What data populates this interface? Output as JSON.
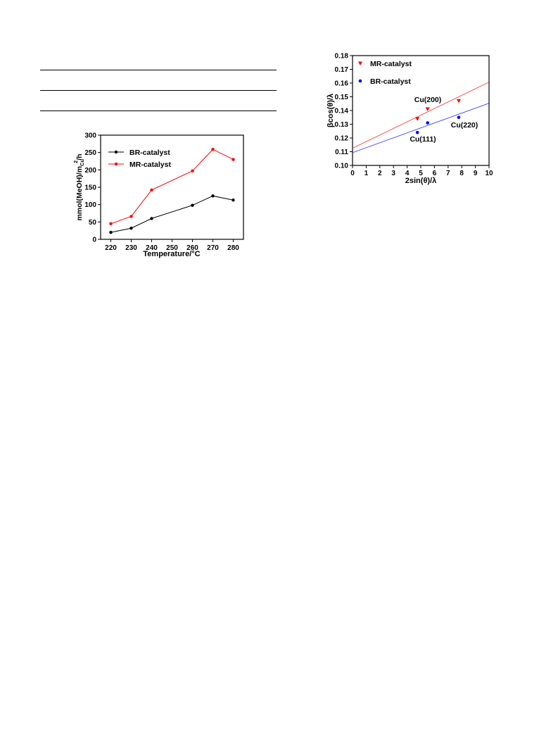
{
  "chart_data": [
    {
      "type": "line",
      "title": "",
      "xlabel": "Temperature/°C",
      "ylabel": "mmol(MeOH)/m",
      "ylabel_sup": "2",
      "ylabel_sub": "Cu",
      "ylabel_tail": "/h",
      "categories": [
        "220",
        "230",
        "240",
        "250",
        "260",
        "270",
        "280"
      ],
      "x": [
        220,
        230,
        240,
        260,
        270,
        280
      ],
      "xlim": [
        215,
        285
      ],
      "ylim": [
        0,
        300
      ],
      "yticks": [
        0,
        50,
        100,
        150,
        200,
        250,
        300
      ],
      "grid": false,
      "legend": "top-left",
      "series": [
        {
          "name": "BR-catalyst",
          "color": "#000000",
          "values": [
            20,
            32,
            60,
            98,
            125,
            113
          ]
        },
        {
          "name": "MR-catalyst",
          "color": "#ff0000",
          "values": [
            45,
            66,
            142,
            197,
            259,
            230
          ]
        }
      ]
    },
    {
      "type": "scatter",
      "title": "",
      "xlabel": "2sin(θ)/λ",
      "ylabel": "βcos(θ)/λ",
      "xlim": [
        0,
        10
      ],
      "ylim": [
        0.1,
        0.18
      ],
      "xticks": [
        0,
        1,
        2,
        3,
        4,
        5,
        6,
        7,
        8,
        9,
        10
      ],
      "yticks": [
        "0.10",
        "0.11",
        "0.12",
        "0.13",
        "0.14",
        "0.15",
        "0.16",
        "0.17",
        "0.18"
      ],
      "grid": false,
      "legend": "top-left",
      "series": [
        {
          "name": "MR-catalyst",
          "color": "#ff0000",
          "marker": "triangle-down",
          "points": [
            [
              4.75,
              0.134
            ],
            [
              5.5,
              0.141
            ],
            [
              7.78,
              0.147
            ]
          ],
          "fit": [
            [
              0,
              0.1125
            ],
            [
              10,
              0.1607
            ]
          ]
        },
        {
          "name": "BR-catalyst",
          "color": "#0000ff",
          "marker": "circle",
          "points": [
            [
              4.75,
              0.124
            ],
            [
              5.5,
              0.131
            ],
            [
              7.78,
              0.135
            ]
          ],
          "fit": [
            [
              0,
              0.1093
            ],
            [
              10,
              0.1453
            ]
          ]
        }
      ],
      "annotations": [
        "Cu(200)",
        "Cu(111)",
        "Cu(220)"
      ]
    }
  ]
}
